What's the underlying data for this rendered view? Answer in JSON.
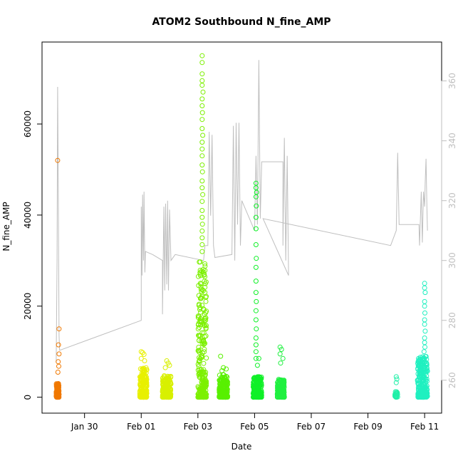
{
  "chart_data": {
    "type": "scatter",
    "title": "ATOM2 Southbound N_fine_AMP",
    "xlabel": "Date",
    "ylabel": "N_fine_AMP",
    "x_ticks": [
      "Jan 30",
      "Feb 01",
      "Feb 03",
      "Feb 05",
      "Feb 07",
      "Feb 09",
      "Feb 11"
    ],
    "x_tick_days": [
      0,
      2,
      4,
      6,
      8,
      10,
      12
    ],
    "xlim_days": [
      -1.5,
      12.6
    ],
    "y_ticks": [
      0,
      20000,
      40000,
      60000
    ],
    "ylim": [
      -3500,
      78000
    ],
    "y2_ticks": [
      260,
      280,
      300,
      320,
      340,
      360
    ],
    "y2lim": [
      249,
      373
    ],
    "grid": false,
    "series": [
      {
        "color": "#f07800",
        "day_start": -1.0,
        "day_end": -0.9,
        "dense_max": 3000,
        "count": 150,
        "outliers": [
          [
            -0.95,
            52000
          ],
          [
            -0.9,
            15000
          ],
          [
            -0.92,
            11500
          ],
          [
            -0.9,
            9500
          ],
          [
            -0.93,
            7800
          ],
          [
            -0.91,
            6800
          ],
          [
            -0.94,
            5500
          ]
        ]
      },
      {
        "color": "#e8f000",
        "day_start": 1.95,
        "day_end": 2.2,
        "dense_max": 6500,
        "count": 220,
        "outliers": [
          [
            2.0,
            10000
          ],
          [
            2.05,
            9800
          ],
          [
            2.1,
            9400
          ],
          [
            2.0,
            8500
          ],
          [
            2.12,
            8000
          ]
        ]
      },
      {
        "color": "#d8f000",
        "day_start": 2.75,
        "day_end": 3.05,
        "dense_max": 5000,
        "count": 200,
        "outliers": [
          [
            2.9,
            8000
          ],
          [
            2.95,
            7500
          ],
          [
            3.0,
            7000
          ],
          [
            2.85,
            6500
          ]
        ]
      },
      {
        "color": "#7cf000",
        "day_start": 4.0,
        "day_end": 4.3,
        "dense_max": 30000,
        "count": 260,
        "outliers": [
          [
            4.15,
            75000
          ],
          [
            4.15,
            73500
          ],
          [
            4.15,
            71000
          ],
          [
            4.15,
            69500
          ],
          [
            4.15,
            68500
          ],
          [
            4.18,
            67000
          ],
          [
            4.15,
            65500
          ],
          [
            4.15,
            64000
          ],
          [
            4.16,
            62500
          ],
          [
            4.15,
            61000
          ],
          [
            4.15,
            59000
          ],
          [
            4.17,
            57500
          ],
          [
            4.15,
            56000
          ],
          [
            4.15,
            54500
          ],
          [
            4.15,
            53000
          ],
          [
            4.15,
            51000
          ],
          [
            4.16,
            49500
          ],
          [
            4.15,
            47500
          ],
          [
            4.15,
            46000
          ],
          [
            4.17,
            44500
          ],
          [
            4.15,
            43000
          ],
          [
            4.15,
            41000
          ],
          [
            4.15,
            39500
          ],
          [
            4.16,
            38000
          ],
          [
            4.15,
            36500
          ],
          [
            4.15,
            35000
          ],
          [
            4.15,
            33500
          ],
          [
            4.15,
            32000
          ]
        ]
      },
      {
        "color": "#58f000",
        "day_start": 4.75,
        "day_end": 5.05,
        "dense_max": 5000,
        "count": 200,
        "outliers": [
          [
            4.8,
            9000
          ],
          [
            4.9,
            6500
          ],
          [
            5.0,
            6200
          ],
          [
            4.85,
            5800
          ]
        ]
      },
      {
        "color": "#10f028",
        "day_start": 5.95,
        "day_end": 6.25,
        "dense_max": 4500,
        "count": 200,
        "outliers": [
          [
            6.05,
            47000
          ],
          [
            6.05,
            46000
          ],
          [
            6.07,
            45000
          ],
          [
            6.05,
            44000
          ],
          [
            6.06,
            42000
          ],
          [
            6.05,
            39500
          ],
          [
            6.05,
            37000
          ],
          [
            6.05,
            33500
          ],
          [
            6.06,
            30500
          ],
          [
            6.05,
            28500
          ],
          [
            6.05,
            25500
          ],
          [
            6.05,
            23000
          ],
          [
            6.06,
            21000
          ],
          [
            6.05,
            19000
          ],
          [
            6.05,
            17000
          ],
          [
            6.06,
            15000
          ],
          [
            6.05,
            13000
          ],
          [
            6.05,
            11500
          ],
          [
            6.05,
            10000
          ],
          [
            6.05,
            8500
          ],
          [
            6.15,
            8500
          ],
          [
            6.1,
            7000
          ]
        ]
      },
      {
        "color": "#20f040",
        "day_start": 6.8,
        "day_end": 7.05,
        "dense_max": 4000,
        "count": 200,
        "outliers": [
          [
            6.9,
            11000
          ],
          [
            6.95,
            10500
          ],
          [
            6.9,
            9500
          ],
          [
            7.0,
            8500
          ],
          [
            6.92,
            7500
          ]
        ]
      },
      {
        "color": "#20f0a8",
        "day_start": 10.95,
        "day_end": 11.05,
        "dense_max": 1200,
        "count": 25,
        "outliers": [
          [
            11.0,
            4500
          ],
          [
            11.02,
            4000
          ],
          [
            11.0,
            3200
          ]
        ]
      },
      {
        "color": "#20f0c0",
        "day_start": 11.75,
        "day_end": 12.1,
        "dense_max": 9000,
        "count": 260,
        "outliers": [
          [
            12.0,
            25000
          ],
          [
            12.0,
            24000
          ],
          [
            12.02,
            23000
          ],
          [
            12.0,
            21000
          ],
          [
            12.0,
            20000
          ],
          [
            12.01,
            18500
          ],
          [
            12.0,
            17000
          ],
          [
            12.0,
            16000
          ],
          [
            12.02,
            14500
          ],
          [
            12.0,
            13000
          ],
          [
            12.0,
            12000
          ],
          [
            12.01,
            11000
          ],
          [
            11.98,
            10000
          ]
        ]
      }
    ],
    "secondary_line": {
      "color": "#bfbfbf",
      "points": [
        [
          -1.0,
          266
        ],
        [
          -0.97,
          300
        ],
        [
          -0.95,
          358
        ],
        [
          -0.93,
          330
        ],
        [
          -0.9,
          275
        ],
        [
          -0.88,
          270
        ],
        [
          2.0,
          280
        ],
        [
          2.0,
          318
        ],
        [
          2.03,
          295
        ],
        [
          2.05,
          322
        ],
        [
          2.08,
          300
        ],
        [
          2.1,
          323
        ],
        [
          2.13,
          296
        ],
        [
          2.15,
          303
        ],
        [
          2.4,
          302
        ],
        [
          2.75,
          300
        ],
        [
          2.75,
          282
        ],
        [
          2.8,
          318
        ],
        [
          2.83,
          290
        ],
        [
          2.86,
          319
        ],
        [
          2.9,
          292
        ],
        [
          2.93,
          320
        ],
        [
          2.96,
          290
        ],
        [
          3.0,
          317
        ],
        [
          3.05,
          300
        ],
        [
          3.2,
          302
        ],
        [
          4.2,
          300
        ],
        [
          4.25,
          305
        ],
        [
          4.35,
          305
        ],
        [
          4.4,
          343
        ],
        [
          4.45,
          315
        ],
        [
          4.5,
          342
        ],
        [
          4.55,
          305
        ],
        [
          4.6,
          301
        ],
        [
          5.2,
          302
        ],
        [
          5.25,
          345
        ],
        [
          5.3,
          300
        ],
        [
          5.35,
          346
        ],
        [
          5.4,
          312
        ],
        [
          5.45,
          346
        ],
        [
          5.5,
          305
        ],
        [
          5.55,
          320
        ],
        [
          6.0,
          310
        ],
        [
          6.05,
          335
        ],
        [
          6.1,
          312
        ],
        [
          6.15,
          367
        ],
        [
          6.2,
          314
        ],
        [
          6.25,
          333
        ],
        [
          7.0,
          333
        ],
        [
          7.0,
          305
        ],
        [
          7.05,
          341
        ],
        [
          7.1,
          300
        ],
        [
          7.15,
          335
        ],
        [
          7.2,
          295
        ],
        [
          6.3,
          314
        ],
        [
          10.8,
          305
        ],
        [
          11.0,
          310
        ],
        [
          11.05,
          336
        ],
        [
          11.1,
          312
        ],
        [
          11.2,
          312
        ],
        [
          11.8,
          312
        ],
        [
          11.82,
          305
        ],
        [
          11.88,
          323
        ],
        [
          11.92,
          306
        ],
        [
          11.96,
          323
        ],
        [
          12.0,
          318
        ],
        [
          12.02,
          326
        ],
        [
          12.05,
          334
        ],
        [
          12.08,
          318
        ],
        [
          12.1,
          310
        ]
      ]
    }
  }
}
